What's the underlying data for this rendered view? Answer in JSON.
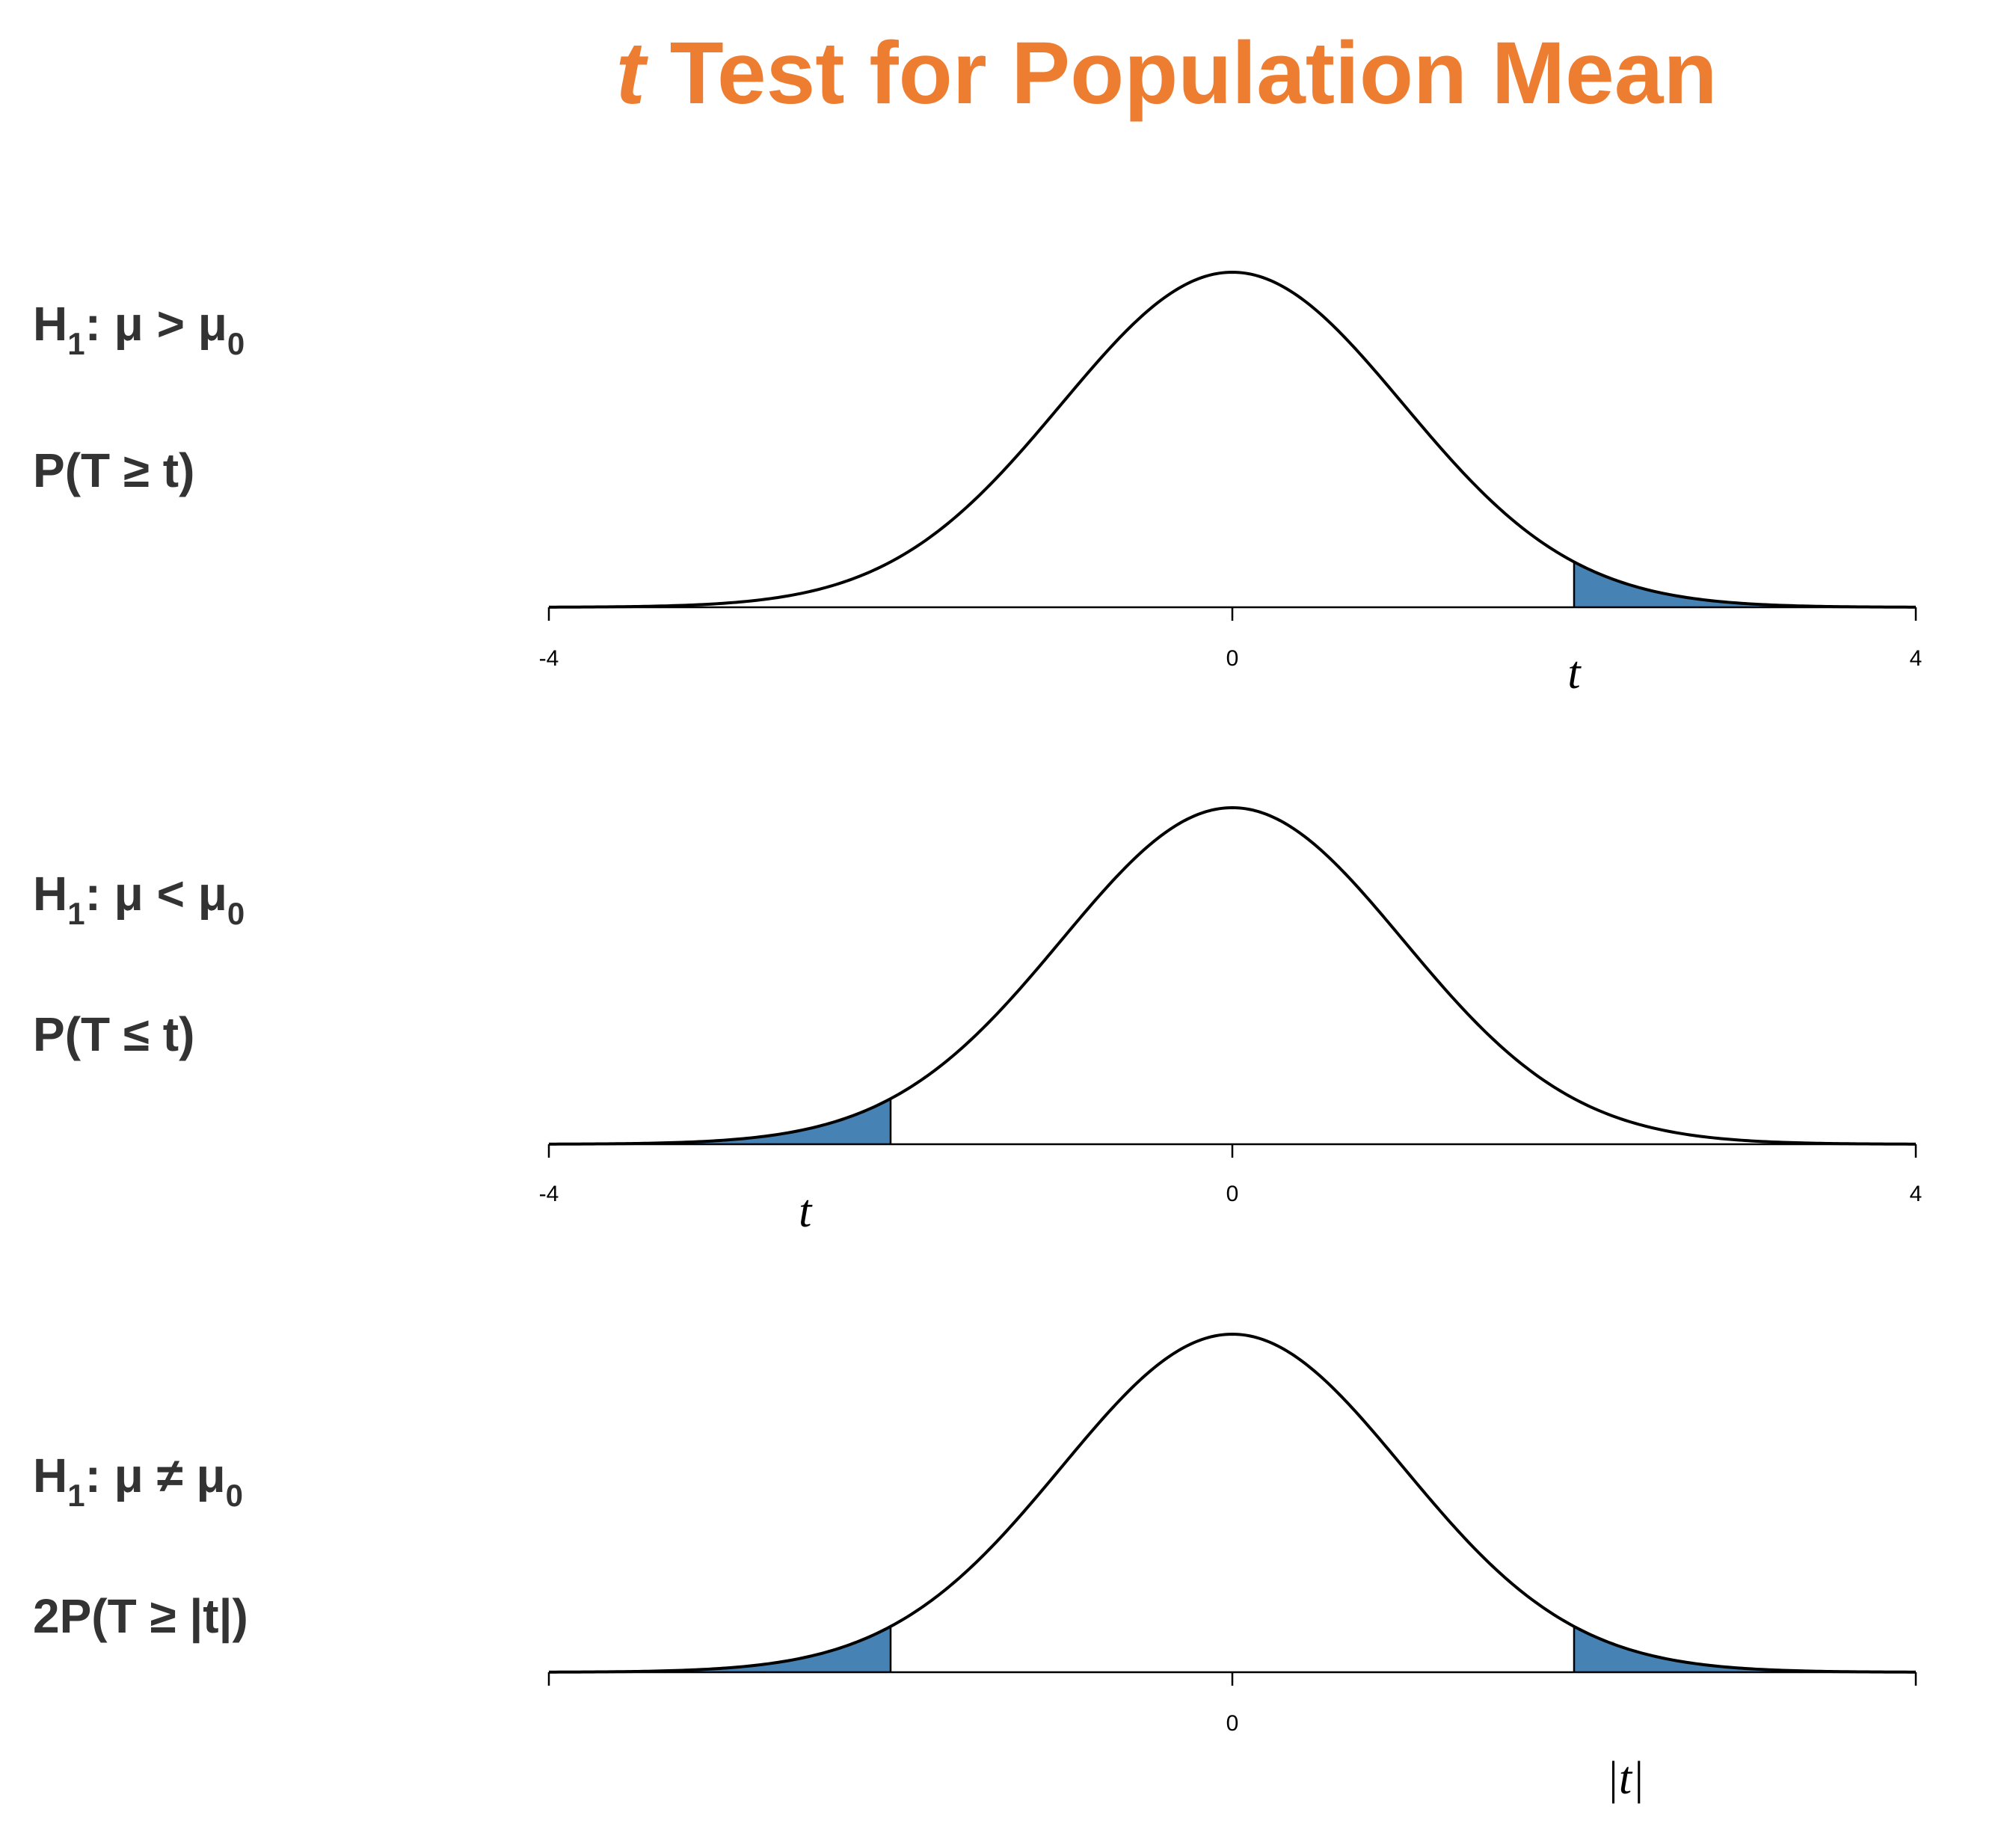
{
  "title": {
    "italic_part": "t",
    "rest": " Test for Population Mean"
  },
  "colors": {
    "title": "#ED7D31",
    "shade": "#4682B4",
    "curve": "#000000",
    "label_text": "#333333"
  },
  "panels": [
    {
      "hypothesis": {
        "prefix": "H",
        "sub1": "1",
        "mid": ": μ > μ",
        "sub2": "0"
      },
      "pvalue": "P(T ≥ t)",
      "marker": "t"
    },
    {
      "hypothesis": {
        "prefix": "H",
        "sub1": "1",
        "mid": ": μ < μ",
        "sub2": "0"
      },
      "pvalue": "P(T ≤ t)",
      "marker": "t"
    },
    {
      "hypothesis": {
        "prefix": "H",
        "sub1": "1",
        "mid": ": μ ≠ μ",
        "sub2": "0"
      },
      "pvalue": "2P(T ≥ |t|)",
      "marker": "|t|"
    }
  ],
  "chart_data": [
    {
      "type": "area",
      "distribution": "t density",
      "xlim": [
        -4,
        4
      ],
      "x_ticks": [
        -4,
        0,
        4
      ],
      "x_tick_labels": [
        "-4",
        "0",
        "4"
      ],
      "shaded_regions": [
        [
          2,
          4
        ]
      ],
      "marker_x": 2,
      "marker_label": "t"
    },
    {
      "type": "area",
      "distribution": "t density",
      "xlim": [
        -4,
        4
      ],
      "x_ticks": [
        -4,
        0,
        4
      ],
      "x_tick_labels": [
        "-4",
        "0",
        "4"
      ],
      "shaded_regions": [
        [
          -4,
          -2
        ]
      ],
      "marker_x": -2.5,
      "marker_label": "t"
    },
    {
      "type": "area",
      "distribution": "t density",
      "xlim": [
        -4,
        4
      ],
      "x_ticks": [
        -4,
        0,
        4
      ],
      "x_tick_labels": [
        "",
        "0",
        ""
      ],
      "shaded_regions": [
        [
          -4,
          -2
        ],
        [
          2,
          4
        ]
      ],
      "marker_x": 2.3,
      "marker_label": "|t|"
    }
  ]
}
